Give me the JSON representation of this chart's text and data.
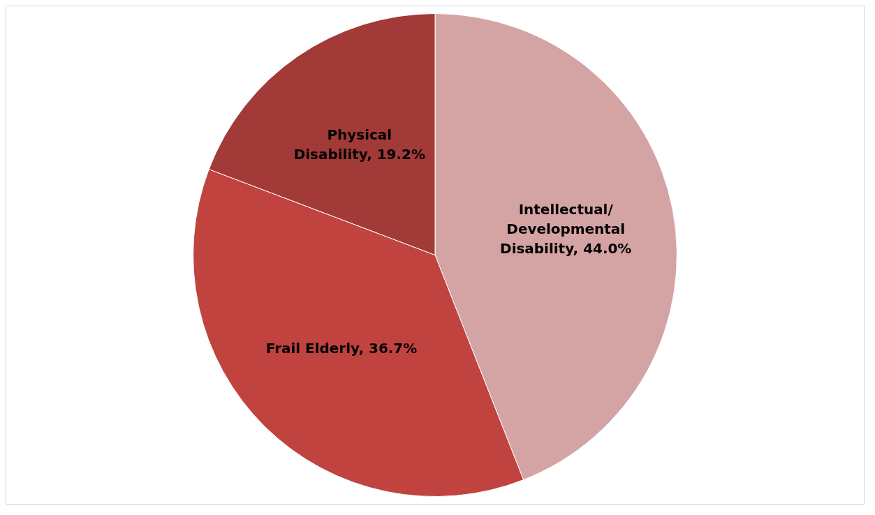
{
  "chart_data": {
    "type": "pie",
    "categories": [
      "Intellectual/Developmental Disability",
      "Frail Elderly",
      "Physical Disability"
    ],
    "values": [
      44.0,
      36.7,
      19.2
    ],
    "value_labels": [
      "44.0%",
      "36.7%",
      "19.2%"
    ],
    "colors": [
      "#d4a3a3",
      "#c0433f",
      "#a23a37"
    ],
    "legend": false
  }
}
